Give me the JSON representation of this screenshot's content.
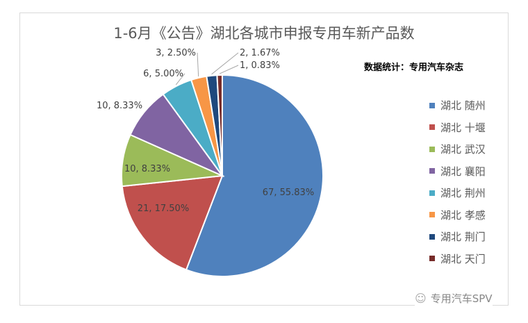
{
  "chart_data": {
    "type": "pie",
    "title": "1-6月《公告》湖北各城市申报专用车新产品数",
    "annotation": "数据统计：专用汽车杂志",
    "legend_position": "right",
    "categories": [
      "湖北 随州",
      "湖北 十堰",
      "湖北 武汉",
      "湖北 襄阳",
      "湖北 荆州",
      "湖北 孝感",
      "湖北 荆门",
      "湖北 天门"
    ],
    "values": [
      67,
      21,
      10,
      10,
      6,
      3,
      2,
      1
    ],
    "data_labels": [
      "67, 55.83%",
      "21, 17.50%",
      "10, 8.33%",
      "10, 8.33%",
      "6, 5.00%",
      "3, 2.50%",
      "2, 1.67%",
      "1, 0.83%"
    ],
    "colors": [
      "#4F81BD",
      "#C0504D",
      "#9BBB59",
      "#8064A2",
      "#4BACC6",
      "#F79646",
      "#1F497D",
      "#772C2A"
    ],
    "start_angle": "12 o'clock, clockwise"
  },
  "watermark": {
    "text": "专用汽车SPV",
    "icon": "wechat-icon"
  }
}
